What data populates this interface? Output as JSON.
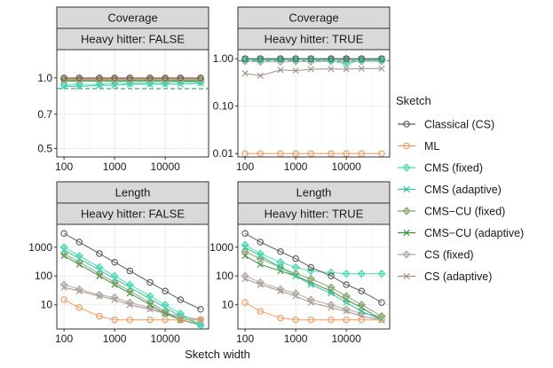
{
  "chart_data": {
    "type": "line",
    "xlabel": "Sketch width",
    "x": [
      100,
      200,
      500,
      1000,
      2000,
      5000,
      10000,
      20000,
      50000
    ],
    "x_ticks": [
      "100",
      "1000",
      "10000"
    ],
    "x_scale": "log",
    "legend": {
      "title": "Sketch",
      "position": "right",
      "entries": [
        {
          "name": "Classical (CS)",
          "color": "#5a5a5a",
          "marker": "circle"
        },
        {
          "name": "ML",
          "color": "#ee9a66",
          "marker": "circle"
        },
        {
          "name": "CMS (fixed)",
          "color": "#4dd9b0",
          "marker": "diamond"
        },
        {
          "name": "CMS (adaptive)",
          "color": "#34c39a",
          "marker": "x"
        },
        {
          "name": "CMS−CU (fixed)",
          "color": "#85a36c",
          "marker": "diamond"
        },
        {
          "name": "CMS−CU (adaptive)",
          "color": "#3d8c40",
          "marker": "x"
        },
        {
          "name": "CS (fixed)",
          "color": "#b0a8a3",
          "marker": "diamond"
        },
        {
          "name": "CS (adaptive)",
          "color": "#a09088",
          "marker": "x"
        }
      ]
    },
    "reference_line": {
      "name": "target coverage",
      "value": 0.9,
      "color": "#2e9e82",
      "style": "dashed"
    },
    "panels": [
      {
        "row": "Coverage",
        "col": "Heavy hitter: FALSE",
        "y_scale": "log",
        "ylim": [
          0.46,
          1.32
        ],
        "y_ticks": [
          {
            "v": 0.5,
            "l": "0.5"
          },
          {
            "v": 0.7,
            "l": "0.7"
          },
          {
            "v": 1.0,
            "l": "1.0"
          }
        ],
        "show_reference": true,
        "series": [
          {
            "name": "Classical (CS)",
            "values": [
              1,
              1,
              1,
              1,
              1,
              1,
              1,
              1,
              1
            ]
          },
          {
            "name": "ML",
            "values": [
              0.99,
              0.99,
              0.99,
              0.99,
              0.99,
              0.99,
              0.99,
              0.99,
              0.99
            ]
          },
          {
            "name": "CMS (fixed)",
            "values": [
              0.93,
              0.94,
              0.94,
              0.95,
              0.95,
              0.95,
              0.95,
              0.96,
              0.96
            ]
          },
          {
            "name": "CMS (adaptive)",
            "values": [
              0.92,
              0.92,
              0.93,
              0.93,
              0.94,
              0.94,
              0.94,
              0.94,
              0.95
            ]
          },
          {
            "name": "CMS−CU (fixed)",
            "values": [
              0.98,
              0.98,
              0.98,
              0.98,
              0.98,
              0.98,
              0.98,
              0.98,
              0.98
            ]
          },
          {
            "name": "CMS−CU (adaptive)",
            "values": [
              0.97,
              0.97,
              0.97,
              0.97,
              0.97,
              0.97,
              0.97,
              0.97,
              0.97
            ]
          },
          {
            "name": "CS (fixed)",
            "values": [
              0.99,
              0.99,
              0.99,
              0.99,
              0.99,
              0.99,
              0.99,
              0.99,
              0.99
            ]
          },
          {
            "name": "CS (adaptive)",
            "values": [
              0.98,
              0.98,
              0.98,
              0.98,
              0.98,
              0.98,
              0.98,
              0.98,
              0.98
            ]
          }
        ]
      },
      {
        "row": "Coverage",
        "col": "Heavy hitter: TRUE",
        "y_scale": "log",
        "ylim": [
          0.0085,
          1.55
        ],
        "y_ticks": [
          {
            "v": 0.01,
            "l": "0.01"
          },
          {
            "v": 0.1,
            "l": "0.10"
          },
          {
            "v": 1.0,
            "l": "1.00"
          }
        ],
        "show_reference": true,
        "series": [
          {
            "name": "Classical (CS)",
            "values": [
              1,
              1,
              1,
              1,
              1,
              1,
              1,
              1,
              1
            ]
          },
          {
            "name": "ML",
            "values": [
              0.01,
              0.01,
              0.01,
              0.01,
              0.01,
              0.01,
              0.01,
              0.01,
              0.01
            ]
          },
          {
            "name": "CMS (fixed)",
            "values": [
              0.97,
              0.93,
              0.95,
              0.96,
              0.96,
              0.9,
              0.78,
              0.92,
              0.93
            ]
          },
          {
            "name": "CMS (adaptive)",
            "values": [
              0.98,
              0.98,
              0.98,
              0.98,
              0.98,
              0.98,
              0.98,
              0.98,
              0.98
            ]
          },
          {
            "name": "CMS−CU (fixed)",
            "values": [
              0.96,
              0.96,
              0.96,
              0.96,
              0.96,
              0.96,
              0.96,
              0.96,
              0.96
            ]
          },
          {
            "name": "CMS−CU (adaptive)",
            "values": [
              0.97,
              0.97,
              0.97,
              0.97,
              0.97,
              0.97,
              0.97,
              0.97,
              0.97
            ]
          },
          {
            "name": "CS (fixed)",
            "values": [
              0.88,
              0.86,
              0.86,
              0.88,
              0.86,
              0.88,
              0.86,
              0.88,
              0.88
            ]
          },
          {
            "name": "CS (adaptive)",
            "values": [
              0.49,
              0.44,
              0.58,
              0.56,
              0.6,
              0.61,
              0.6,
              0.62,
              0.62
            ]
          }
        ]
      },
      {
        "row": "Length",
        "col": "Heavy hitter: FALSE",
        "y_scale": "log",
        "ylim": [
          1.45,
          6200
        ],
        "y_ticks": [
          {
            "v": 10,
            "l": "10"
          },
          {
            "v": 100,
            "l": "100"
          },
          {
            "v": 1000,
            "l": "1000"
          }
        ],
        "show_reference": false,
        "series": [
          {
            "name": "Classical (CS)",
            "values": [
              3000,
              1500,
              600,
              300,
              150,
              60,
              30,
              15,
              7
            ]
          },
          {
            "name": "ML",
            "values": [
              15,
              8,
              4,
              3,
              3,
              3,
              3,
              3,
              3
            ]
          },
          {
            "name": "CMS (fixed)",
            "values": [
              1000,
              500,
              200,
              100,
              50,
              20,
              10,
              5,
              2
            ]
          },
          {
            "name": "CMS (adaptive)",
            "values": [
              800,
              400,
              160,
              80,
              40,
              16,
              8,
              4,
              2
            ]
          },
          {
            "name": "CMS−CU (fixed)",
            "values": [
              600,
              300,
              120,
              60,
              30,
              12,
              6,
              3,
              2
            ]
          },
          {
            "name": "CMS−CU (adaptive)",
            "values": [
              500,
              250,
              100,
              50,
              25,
              10,
              5,
              3,
              2
            ]
          },
          {
            "name": "CS (fixed)",
            "values": [
              50,
              35,
              22,
              18,
              12,
              8,
              5,
              4,
              3
            ]
          },
          {
            "name": "CS (adaptive)",
            "values": [
              40,
              30,
              20,
              15,
              10,
              7,
              5,
              4,
              3
            ]
          }
        ]
      },
      {
        "row": "Length",
        "col": "Heavy hitter: TRUE",
        "y_scale": "log",
        "ylim": [
          1.45,
          6200
        ],
        "y_ticks": [
          {
            "v": 10,
            "l": "10"
          },
          {
            "v": 100,
            "l": "100"
          },
          {
            "v": 1000,
            "l": "1000"
          }
        ],
        "show_reference": false,
        "series": [
          {
            "name": "Classical (CS)",
            "values": [
              3000,
              1500,
              700,
              400,
              200,
              100,
              50,
              30,
              12
            ]
          },
          {
            "name": "ML",
            "values": [
              12,
              6,
              3.5,
              3,
              3,
              3,
              3,
              3,
              3
            ]
          },
          {
            "name": "CMS (fixed)",
            "values": [
              1200,
              600,
              300,
              200,
              150,
              130,
              120,
              120,
              120
            ]
          },
          {
            "name": "CMS (adaptive)",
            "values": [
              1000,
              500,
              200,
              100,
              50,
              25,
              12,
              6,
              3
            ]
          },
          {
            "name": "CMS−CU (fixed)",
            "values": [
              700,
              400,
              200,
              120,
              80,
              40,
              20,
              10,
              4
            ]
          },
          {
            "name": "CMS−CU (adaptive)",
            "values": [
              500,
              250,
              150,
              100,
              60,
              30,
              15,
              8,
              3
            ]
          },
          {
            "name": "CS (fixed)",
            "values": [
              100,
              60,
              35,
              25,
              15,
              10,
              7,
              5,
              4
            ]
          },
          {
            "name": "CS (adaptive)",
            "values": [
              80,
              50,
              30,
              20,
              12,
              8,
              6,
              4,
              3
            ]
          }
        ]
      }
    ]
  }
}
